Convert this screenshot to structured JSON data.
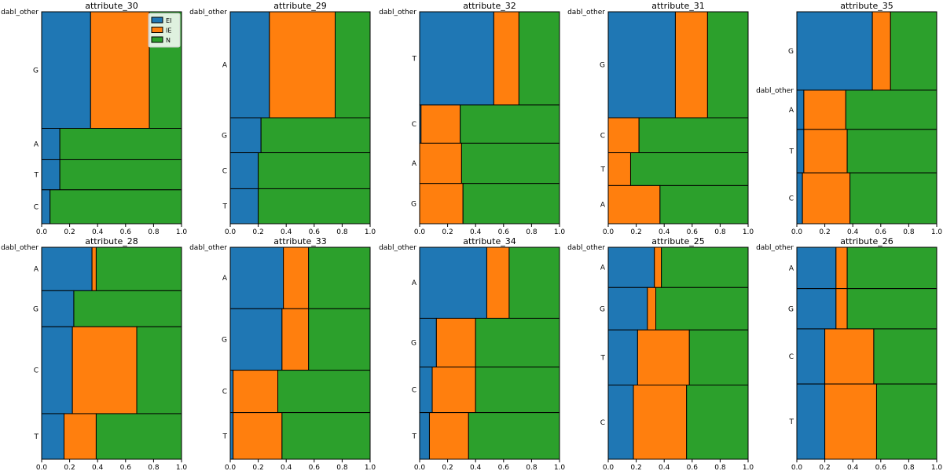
{
  "colors": {
    "EI": "#1f77b4",
    "IE": "#ff7f0e",
    "N": "#2ca02c"
  },
  "legend": {
    "entries": [
      "EI",
      "IE",
      "N"
    ],
    "placement": "top-right"
  },
  "chart_data": [
    {
      "type": "mosaic",
      "title": "attribute_30",
      "xlim": [
        0,
        1
      ],
      "xticks": [
        "0.0",
        "0.2",
        "0.4",
        "0.6",
        "0.8",
        "1.0"
      ],
      "classes": [
        "EI",
        "IE",
        "N"
      ],
      "categories": [
        {
          "label": "dabl_other",
          "share": 0.0,
          "fractions": [
            0.34,
            0.0,
            0.66
          ]
        },
        {
          "label": "G",
          "share": 0.55,
          "fractions": [
            0.35,
            0.42,
            0.23
          ]
        },
        {
          "label": "A",
          "share": 0.148,
          "fractions": [
            0.13,
            0.0,
            0.87
          ]
        },
        {
          "label": "T",
          "share": 0.142,
          "fractions": [
            0.13,
            0.0,
            0.87
          ]
        },
        {
          "label": "C",
          "share": 0.16,
          "fractions": [
            0.06,
            0.0,
            0.94
          ]
        }
      ]
    },
    {
      "type": "mosaic",
      "title": "attribute_29",
      "xlim": [
        0,
        1
      ],
      "xticks": [
        "0.0",
        "0.2",
        "0.4",
        "0.6",
        "0.8",
        "1.0"
      ],
      "classes": [
        "EI",
        "IE",
        "N"
      ],
      "categories": [
        {
          "label": "dabl_other",
          "share": 0.0,
          "fractions": [
            0.28,
            0.0,
            0.72
          ]
        },
        {
          "label": "A",
          "share": 0.5,
          "fractions": [
            0.28,
            0.47,
            0.25
          ]
        },
        {
          "label": "G",
          "share": 0.165,
          "fractions": [
            0.22,
            0.0,
            0.78
          ]
        },
        {
          "label": "C",
          "share": 0.17,
          "fractions": [
            0.2,
            0.0,
            0.8
          ]
        },
        {
          "label": "T",
          "share": 0.165,
          "fractions": [
            0.2,
            0.0,
            0.8
          ]
        }
      ]
    },
    {
      "type": "mosaic",
      "title": "attribute_32",
      "xlim": [
        0,
        1
      ],
      "xticks": [
        "0.0",
        "0.2",
        "0.4",
        "0.6",
        "0.8",
        "1.0"
      ],
      "classes": [
        "EI",
        "IE",
        "N"
      ],
      "categories": [
        {
          "label": "dabl_other",
          "share": 0.0,
          "fractions": [
            0.53,
            0.0,
            0.47
          ]
        },
        {
          "label": "T",
          "share": 0.44,
          "fractions": [
            0.53,
            0.18,
            0.29
          ]
        },
        {
          "label": "C",
          "share": 0.18,
          "fractions": [
            0.01,
            0.28,
            0.71
          ]
        },
        {
          "label": "A",
          "share": 0.19,
          "fractions": [
            0.0,
            0.3,
            0.7
          ]
        },
        {
          "label": "G",
          "share": 0.19,
          "fractions": [
            0.0,
            0.31,
            0.69
          ]
        }
      ]
    },
    {
      "type": "mosaic",
      "title": "attribute_31",
      "xlim": [
        0,
        1
      ],
      "xticks": [
        "0.0",
        "0.2",
        "0.4",
        "0.6",
        "0.8",
        "1.0"
      ],
      "classes": [
        "EI",
        "IE",
        "N"
      ],
      "categories": [
        {
          "label": "dabl_other",
          "share": 0.0,
          "fractions": [
            0.48,
            0.0,
            0.52
          ]
        },
        {
          "label": "G",
          "share": 0.5,
          "fractions": [
            0.48,
            0.23,
            0.29
          ]
        },
        {
          "label": "C",
          "share": 0.165,
          "fractions": [
            0.0,
            0.22,
            0.78
          ]
        },
        {
          "label": "T",
          "share": 0.155,
          "fractions": [
            0.0,
            0.16,
            0.84
          ]
        },
        {
          "label": "A",
          "share": 0.18,
          "fractions": [
            0.0,
            0.37,
            0.63
          ]
        }
      ]
    },
    {
      "type": "mosaic",
      "title": "attribute_35",
      "xlim": [
        0,
        1
      ],
      "xticks": [
        "0.0",
        "0.2",
        "0.4",
        "0.6",
        "0.8",
        "1.0"
      ],
      "classes": [
        "EI",
        "IE",
        "N"
      ],
      "categories": [
        {
          "label": "G",
          "share": 0.37,
          "fractions": [
            0.54,
            0.13,
            0.33
          ]
        },
        {
          "label": "dabl_other",
          "share": 0.0,
          "fractions": [
            0.05,
            0.0,
            0.95
          ]
        },
        {
          "label": "A",
          "share": 0.185,
          "fractions": [
            0.05,
            0.3,
            0.65
          ]
        },
        {
          "label": "T",
          "share": 0.205,
          "fractions": [
            0.05,
            0.31,
            0.64
          ]
        },
        {
          "label": "C",
          "share": 0.24,
          "fractions": [
            0.04,
            0.34,
            0.62
          ]
        }
      ]
    },
    {
      "type": "mosaic",
      "title": "attribute_28",
      "xlim": [
        0,
        1
      ],
      "xticks": [
        "0.0",
        "0.2",
        "0.4",
        "0.6",
        "0.8",
        "1.0"
      ],
      "classes": [
        "EI",
        "IE",
        "N"
      ],
      "categories": [
        {
          "label": "dabl_other",
          "share": 0.0,
          "fractions": [
            0.36,
            0.0,
            0.64
          ]
        },
        {
          "label": "A",
          "share": 0.205,
          "fractions": [
            0.36,
            0.03,
            0.61
          ]
        },
        {
          "label": "G",
          "share": 0.17,
          "fractions": [
            0.23,
            0.0,
            0.77
          ]
        },
        {
          "label": "C",
          "share": 0.41,
          "fractions": [
            0.22,
            0.46,
            0.32
          ]
        },
        {
          "label": "T",
          "share": 0.215,
          "fractions": [
            0.16,
            0.23,
            0.61
          ]
        }
      ]
    },
    {
      "type": "mosaic",
      "title": "attribute_33",
      "xlim": [
        0,
        1
      ],
      "xticks": [
        "0.0",
        "0.2",
        "0.4",
        "0.6",
        "0.8",
        "1.0"
      ],
      "classes": [
        "EI",
        "IE",
        "N"
      ],
      "categories": [
        {
          "label": "dabl_other",
          "share": 0.0,
          "fractions": [
            0.38,
            0.0,
            0.62
          ]
        },
        {
          "label": "A",
          "share": 0.29,
          "fractions": [
            0.38,
            0.18,
            0.44
          ]
        },
        {
          "label": "G",
          "share": 0.29,
          "fractions": [
            0.37,
            0.19,
            0.44
          ]
        },
        {
          "label": "C",
          "share": 0.2,
          "fractions": [
            0.02,
            0.32,
            0.66
          ]
        },
        {
          "label": "T",
          "share": 0.22,
          "fractions": [
            0.02,
            0.35,
            0.63
          ]
        }
      ]
    },
    {
      "type": "mosaic",
      "title": "attribute_34",
      "xlim": [
        0,
        1
      ],
      "xticks": [
        "0.0",
        "0.2",
        "0.4",
        "0.6",
        "0.8",
        "1.0"
      ],
      "classes": [
        "EI",
        "IE",
        "N"
      ],
      "categories": [
        {
          "label": "dabl_other",
          "share": 0.0,
          "fractions": [
            0.48,
            0.0,
            0.52
          ]
        },
        {
          "label": "A",
          "share": 0.335,
          "fractions": [
            0.48,
            0.16,
            0.36
          ]
        },
        {
          "label": "G",
          "share": 0.23,
          "fractions": [
            0.12,
            0.28,
            0.6
          ]
        },
        {
          "label": "C",
          "share": 0.215,
          "fractions": [
            0.09,
            0.31,
            0.6
          ]
        },
        {
          "label": "T",
          "share": 0.22,
          "fractions": [
            0.07,
            0.28,
            0.65
          ]
        }
      ]
    },
    {
      "type": "mosaic",
      "title": "attribute_25",
      "xlim": [
        0,
        1
      ],
      "xticks": [
        "0.0",
        "0.2",
        "0.4",
        "0.6",
        "0.8",
        "1.0"
      ],
      "classes": [
        "EI",
        "IE",
        "N"
      ],
      "categories": [
        {
          "label": "dabl_other",
          "share": 0.0,
          "fractions": [
            0.33,
            0.0,
            0.67
          ]
        },
        {
          "label": "A",
          "share": 0.19,
          "fractions": [
            0.33,
            0.05,
            0.62
          ]
        },
        {
          "label": "G",
          "share": 0.2,
          "fractions": [
            0.28,
            0.06,
            0.66
          ]
        },
        {
          "label": "T",
          "share": 0.26,
          "fractions": [
            0.21,
            0.37,
            0.42
          ]
        },
        {
          "label": "C",
          "share": 0.35,
          "fractions": [
            0.18,
            0.38,
            0.44
          ]
        }
      ]
    },
    {
      "type": "mosaic",
      "title": "attribute_26",
      "xlim": [
        0,
        1
      ],
      "xticks": [
        "0.0",
        "0.2",
        "0.4",
        "0.6",
        "0.8",
        "1.0"
      ],
      "classes": [
        "EI",
        "IE",
        "N"
      ],
      "categories": [
        {
          "label": "dabl_other",
          "share": 0.0,
          "fractions": [
            0.28,
            0.0,
            0.72
          ]
        },
        {
          "label": "A",
          "share": 0.195,
          "fractions": [
            0.28,
            0.08,
            0.64
          ]
        },
        {
          "label": "G",
          "share": 0.19,
          "fractions": [
            0.28,
            0.08,
            0.64
          ]
        },
        {
          "label": "C",
          "share": 0.26,
          "fractions": [
            0.2,
            0.35,
            0.45
          ]
        },
        {
          "label": "T",
          "share": 0.355,
          "fractions": [
            0.2,
            0.37,
            0.43
          ]
        }
      ]
    }
  ]
}
